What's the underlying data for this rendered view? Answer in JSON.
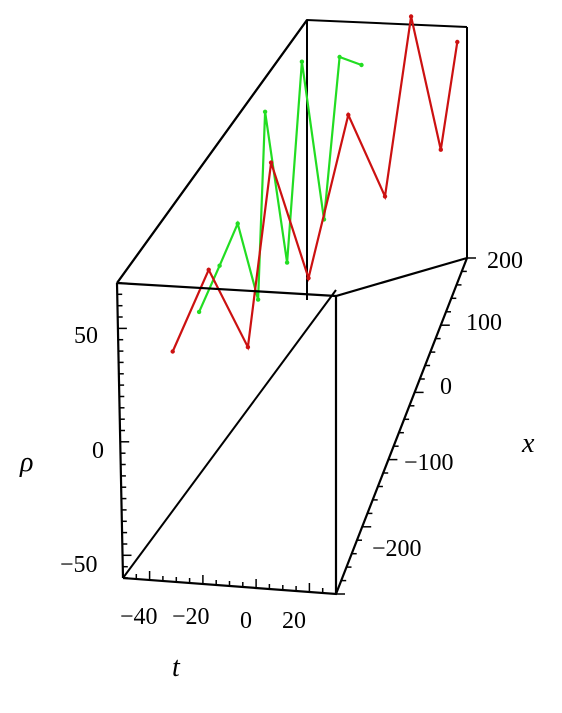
{
  "chart_data": {
    "type": "line",
    "title": "",
    "xlabel": "t",
    "ylabel": "x",
    "zlabel": "ρ",
    "ticks": {
      "t": [
        "−40",
        "−20",
        "0",
        "20"
      ],
      "x": [
        "200",
        "100",
        "0",
        "−100",
        "−200"
      ],
      "rho": [
        "50",
        "0",
        "−50"
      ]
    },
    "axes": {
      "t": {
        "min": -50,
        "max": 30
      },
      "x": {
        "min": -300,
        "max": 200
      },
      "rho": {
        "min": -60,
        "max": 70
      }
    },
    "grid": false,
    "legend": "none",
    "series": [
      {
        "color": "#22dd22",
        "points": [
          {
            "t": -38,
            "x": -120,
            "rho": 5
          },
          {
            "t": -32,
            "x": -100,
            "rho": 20
          },
          {
            "t": -28,
            "x": -70,
            "rho": 30
          },
          {
            "t": -24,
            "x": -40,
            "rho": -12
          },
          {
            "t": -22,
            "x": -20,
            "rho": 65
          },
          {
            "t": -18,
            "x": 10,
            "rho": -10
          },
          {
            "t": -14,
            "x": 40,
            "rho": 70
          },
          {
            "t": -10,
            "x": 70,
            "rho": -8
          },
          {
            "t": -6,
            "x": 100,
            "rho": 55
          },
          {
            "t": -2,
            "x": 140,
            "rho": 40
          }
        ]
      },
      {
        "color": "#cc1111",
        "points": [
          {
            "t": -42,
            "x": -180,
            "rho": 5
          },
          {
            "t": -32,
            "x": -140,
            "rho": 30
          },
          {
            "t": -22,
            "x": -100,
            "rho": -15
          },
          {
            "t": -16,
            "x": -60,
            "rho": 55
          },
          {
            "t": -8,
            "x": -10,
            "rho": -10
          },
          {
            "t": 2,
            "x": 50,
            "rho": 45
          },
          {
            "t": 10,
            "x": 100,
            "rho": -5
          },
          {
            "t": 16,
            "x": 150,
            "rho": 60
          },
          {
            "t": 22,
            "x": 190,
            "rho": -10
          },
          {
            "t": 28,
            "x": 200,
            "rho": 35
          }
        ]
      }
    ]
  }
}
